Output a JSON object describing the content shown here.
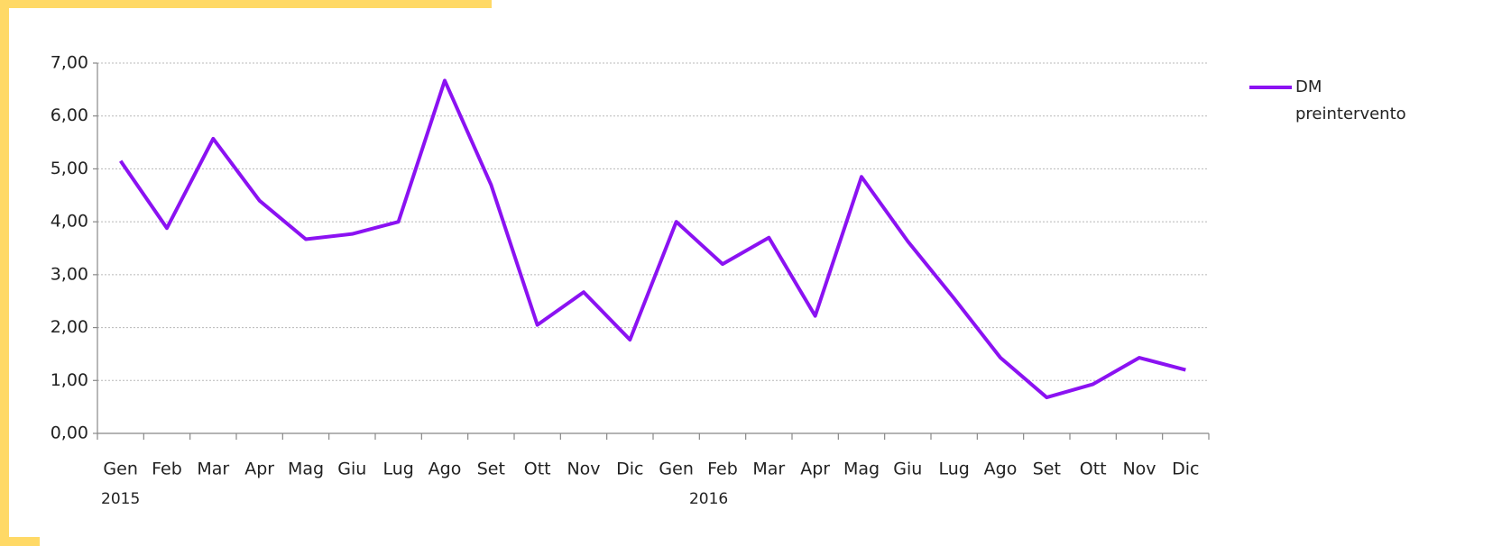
{
  "chart_data": {
    "type": "line",
    "categories": [
      "Gen",
      "Feb",
      "Mar",
      "Apr",
      "Mag",
      "Giu",
      "Lug",
      "Ago",
      "Set",
      "Ott",
      "Nov",
      "Dic",
      "Gen",
      "Feb",
      "Mar",
      "Apr",
      "Mag",
      "Giu",
      "Lug",
      "Ago",
      "Set",
      "Ott",
      "Nov",
      "Dic"
    ],
    "year_labels": [
      "2015",
      "2016"
    ],
    "series": [
      {
        "name": "DM preintervento",
        "color": "#8b12f2",
        "values": [
          5.15,
          3.88,
          5.57,
          4.4,
          3.67,
          3.77,
          4.0,
          6.67,
          4.7,
          2.05,
          2.67,
          1.77,
          4.0,
          3.2,
          3.7,
          2.22,
          4.85,
          3.63,
          2.55,
          1.43,
          0.68,
          0.93,
          1.43,
          1.2
        ]
      }
    ],
    "ylim": [
      0,
      7
    ],
    "yticks": [
      {
        "value": 0,
        "label": "0,00"
      },
      {
        "value": 1,
        "label": "1,00"
      },
      {
        "value": 2,
        "label": "2,00"
      },
      {
        "value": 3,
        "label": "3,00"
      },
      {
        "value": 4,
        "label": "4,00"
      },
      {
        "value": 5,
        "label": "5,00"
      },
      {
        "value": 6,
        "label": "6,00"
      },
      {
        "value": 7,
        "label": "7,00"
      }
    ],
    "grid": true,
    "legend": "right"
  }
}
